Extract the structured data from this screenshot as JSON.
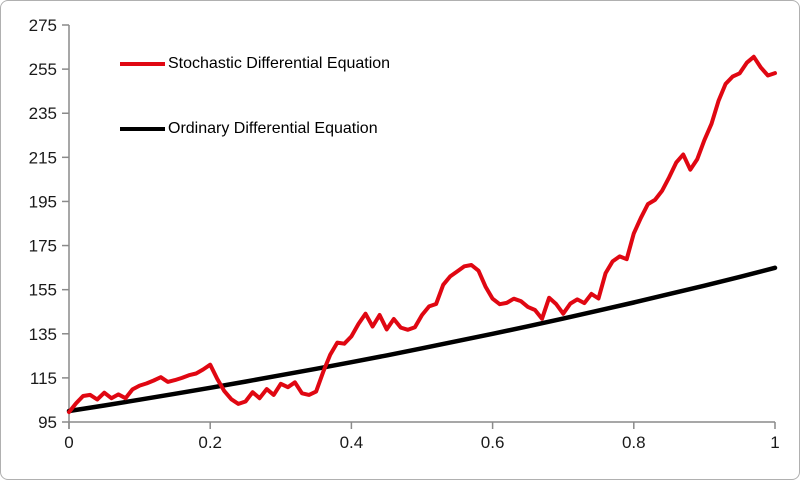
{
  "window": {
    "background": "#ffffff",
    "border_color": "#b0b0b0"
  },
  "chart_data": {
    "type": "line",
    "title": "",
    "xlabel": "",
    "ylabel": "",
    "xlim": [
      0,
      1
    ],
    "ylim": [
      95,
      275
    ],
    "x_ticks": [
      0,
      0.2,
      0.4,
      0.6,
      0.8,
      1
    ],
    "x_tick_labels": [
      "0",
      "0.2",
      "0.4",
      "0.6",
      "0.8",
      "1"
    ],
    "y_ticks": [
      95,
      115,
      135,
      155,
      175,
      195,
      215,
      235,
      255,
      275
    ],
    "grid": false,
    "legend_position": "top-left-inside",
    "axis_color": "#8a8a8a",
    "tick_label_color": "#1a1a1a",
    "series": [
      {
        "name": "Stochastic Differential Equation",
        "color": "#e00712",
        "stroke_width": 4,
        "x0": 0,
        "dx": 0.01,
        "values": [
          99.5,
          103.5,
          106.8,
          107.3,
          105.2,
          108.3,
          105.8,
          107.5,
          105.8,
          109.8,
          111.5,
          112.5,
          113.8,
          115.3,
          113.2,
          114.0,
          115.0,
          116.2,
          117.0,
          118.8,
          121.0,
          114.5,
          109.0,
          105.3,
          103.2,
          104.3,
          108.5,
          105.8,
          109.9,
          107.3,
          112.3,
          110.8,
          113.0,
          108.0,
          107.3,
          108.8,
          117.7,
          125.5,
          131.0,
          130.5,
          133.8,
          139.5,
          144.1,
          138.3,
          143.5,
          137.0,
          141.7,
          137.8,
          136.8,
          138.0,
          143.5,
          147.4,
          148.5,
          157.2,
          161.0,
          163.3,
          165.6,
          166.2,
          163.6,
          156.4,
          150.9,
          148.4,
          149.0,
          150.9,
          149.8,
          147.2,
          145.8,
          141.8,
          151.3,
          148.5,
          144.1,
          148.7,
          150.6,
          148.9,
          153.1,
          151.0,
          162.5,
          167.8,
          170.1,
          168.8,
          180.5,
          187.6,
          193.8,
          195.7,
          199.8,
          205.9,
          212.6,
          216.3,
          209.4,
          214.2,
          222.8,
          230.2,
          240.6,
          248.3,
          251.6,
          253.1,
          257.9,
          260.6,
          255.7,
          252.1,
          253.2
        ]
      },
      {
        "name": "Ordinary Differential Equation",
        "color": "#000000",
        "stroke_width": 4.5,
        "x0": 0,
        "dx": 0.05,
        "values": [
          100.0,
          102.5,
          105.1,
          107.8,
          110.5,
          113.3,
          116.2,
          119.1,
          122.1,
          125.2,
          128.4,
          131.7,
          135.0,
          138.4,
          141.9,
          145.5,
          149.2,
          153.0,
          156.8,
          160.8,
          164.9
        ]
      }
    ]
  }
}
